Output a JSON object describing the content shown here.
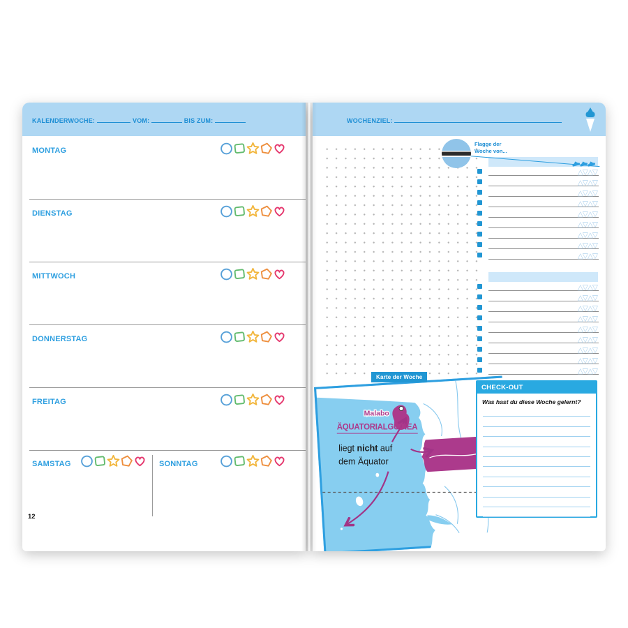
{
  "book": {
    "left_page": {
      "header": {
        "kalenderwoche_label": "KALENDERWOCHE:",
        "vom_label": "VOM:",
        "bis_zum_label": "BIS ZUM:"
      },
      "days": [
        {
          "label": "MONTAG"
        },
        {
          "label": "DIENSTAG"
        },
        {
          "label": "MITTWOCH"
        },
        {
          "label": "DONNERSTAG"
        },
        {
          "label": "FREITAG"
        }
      ],
      "weekend": [
        {
          "label": "SAMSTAG"
        },
        {
          "label": "SONNTAG"
        }
      ],
      "page_number": "12"
    },
    "right_page": {
      "header": {
        "wochenziel_label": "WOCHENZIEL:"
      },
      "flag_of_week": {
        "line1": "Flagge der",
        "line2": "Woche von..."
      },
      "todo": {
        "section1_rows": 9,
        "section2_rows": 9,
        "rating_glyphs": "△▽△▽"
      },
      "checkout": {
        "title": "CHECK-OUT",
        "question": "Was hast du diese Woche gelernt?",
        "line_count": 11
      },
      "map_of_week": {
        "badge": "Karte der Woche",
        "city": "Malabo",
        "country": "ÄQUATORIALGUINEA",
        "caption_pre": "liegt ",
        "caption_bold": "nicht",
        "caption_post": " auf",
        "caption_line2": "dem Äquator"
      }
    },
    "rating_shapes": [
      {
        "name": "circle-shape",
        "color": "#56a0d8"
      },
      {
        "name": "square-shape",
        "color": "#62bb6e"
      },
      {
        "name": "star-shape",
        "color": "#f2b63c"
      },
      {
        "name": "pentagon-shape",
        "color": "#ee8f3e"
      },
      {
        "name": "heart-shape",
        "color": "#e5386e"
      }
    ],
    "colors": {
      "accent": "#2196d3",
      "band": "#aed7f3",
      "day_label": "#2e9fe0",
      "magenta": "#ac3a8c",
      "sea": "#87cef0",
      "checkout_header": "#29a9e1"
    }
  }
}
